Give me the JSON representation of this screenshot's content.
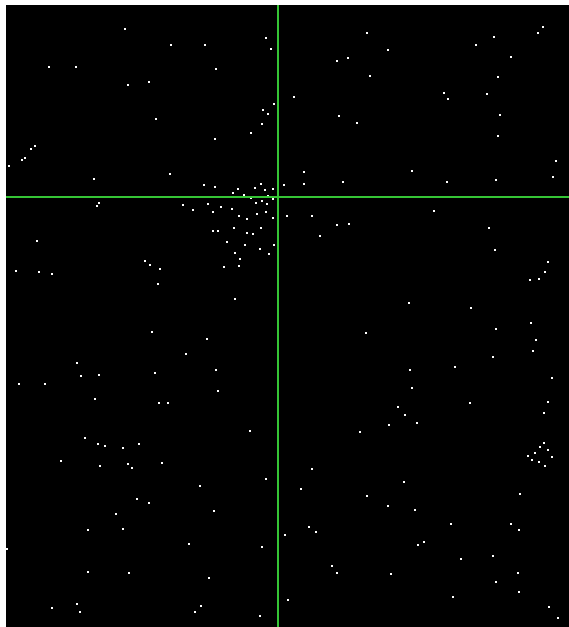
{
  "colors": {
    "background": "#000000",
    "star": "#ffffff",
    "crosshair": "#35c435",
    "frame": "#ffffff"
  },
  "view": {
    "type": "star-field",
    "crosshair_visible": true
  }
}
